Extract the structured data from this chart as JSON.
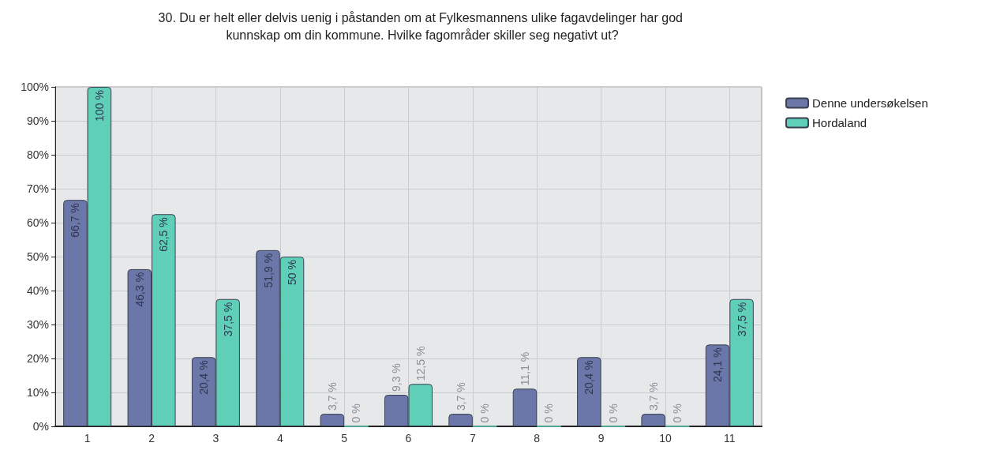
{
  "chart_data": {
    "type": "bar",
    "title": "30. Du er helt eller delvis uenig i påstanden om at Fylkesmannens ulike fagavdelinger har god kunnskap om din kommune. Hvilke fagområder skiller seg negativt ut?",
    "categories": [
      "1",
      "2",
      "3",
      "4",
      "5",
      "6",
      "7",
      "8",
      "9",
      "10",
      "11"
    ],
    "series": [
      {
        "name": "Denne undersøkelsen",
        "color": "#6b77a8",
        "values": [
          66.7,
          46.3,
          20.4,
          51.9,
          3.7,
          9.3,
          3.7,
          11.1,
          20.4,
          3.7,
          24.1
        ],
        "value_labels": [
          "66,7 %",
          "46,3 %",
          "20,4 %",
          "51,9 %",
          "3,7 %",
          "9,3 %",
          "3,7 %",
          "11,1 %",
          "20,4 %",
          "3,7 %",
          "24,1 %"
        ]
      },
      {
        "name": "Hordaland",
        "color": "#5fcfb7",
        "values": [
          100,
          62.5,
          37.5,
          50,
          0,
          12.5,
          0,
          0,
          0,
          0,
          37.5
        ],
        "value_labels": [
          "100 %",
          "62,5 %",
          "37,5 %",
          "50 %",
          "0 %",
          "12,5 %",
          "0 %",
          "0 %",
          "0 %",
          "0 %",
          "37,5 %"
        ]
      }
    ],
    "ylim": [
      0,
      100
    ],
    "yticks": [
      {
        "value": 0,
        "label": "0%"
      },
      {
        "value": 10,
        "label": "10%"
      },
      {
        "value": 20,
        "label": "20%"
      },
      {
        "value": 30,
        "label": "30%"
      },
      {
        "value": 40,
        "label": "40%"
      },
      {
        "value": 50,
        "label": "50%"
      },
      {
        "value": 60,
        "label": "60%"
      },
      {
        "value": 70,
        "label": "70%"
      },
      {
        "value": 80,
        "label": "80%"
      },
      {
        "value": 90,
        "label": "90%"
      },
      {
        "value": 100,
        "label": "100%"
      }
    ],
    "grid": true,
    "legend": "top right"
  }
}
